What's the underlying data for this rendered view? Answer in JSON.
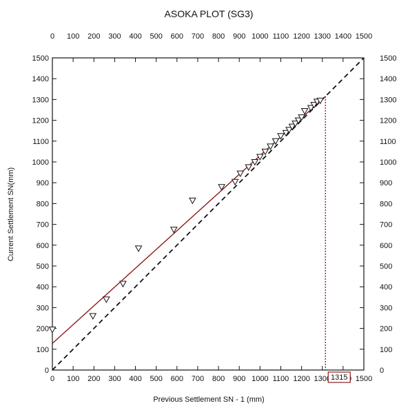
{
  "chart_data": {
    "type": "scatter",
    "title": "ASOKA PLOT (SG3)",
    "xlabel": "Previous Settlement SN - 1 (mm)",
    "ylabel": "Current Settlement SN(mm)",
    "xlim": [
      0,
      1500
    ],
    "ylim": [
      0,
      1500
    ],
    "x_ticks": [
      0,
      100,
      200,
      300,
      400,
      500,
      600,
      700,
      800,
      900,
      1000,
      1100,
      1200,
      1300,
      1400,
      1500
    ],
    "y_ticks": [
      0,
      100,
      200,
      300,
      400,
      500,
      600,
      700,
      800,
      900,
      1000,
      1100,
      1200,
      1300,
      1400,
      1500
    ],
    "grid": false,
    "points": [
      {
        "x": 0,
        "y": 195
      },
      {
        "x": 195,
        "y": 260
      },
      {
        "x": 260,
        "y": 340
      },
      {
        "x": 340,
        "y": 415
      },
      {
        "x": 415,
        "y": 585
      },
      {
        "x": 585,
        "y": 675
      },
      {
        "x": 675,
        "y": 815
      },
      {
        "x": 815,
        "y": 880
      },
      {
        "x": 880,
        "y": 905
      },
      {
        "x": 905,
        "y": 945
      },
      {
        "x": 945,
        "y": 975
      },
      {
        "x": 975,
        "y": 1000
      },
      {
        "x": 1000,
        "y": 1025
      },
      {
        "x": 1025,
        "y": 1050
      },
      {
        "x": 1050,
        "y": 1075
      },
      {
        "x": 1075,
        "y": 1100
      },
      {
        "x": 1100,
        "y": 1125
      },
      {
        "x": 1125,
        "y": 1140
      },
      {
        "x": 1140,
        "y": 1155
      },
      {
        "x": 1155,
        "y": 1170
      },
      {
        "x": 1170,
        "y": 1185
      },
      {
        "x": 1185,
        "y": 1200
      },
      {
        "x": 1200,
        "y": 1215
      },
      {
        "x": 1215,
        "y": 1245
      },
      {
        "x": 1245,
        "y": 1260
      },
      {
        "x": 1260,
        "y": 1275
      },
      {
        "x": 1275,
        "y": 1290
      },
      {
        "x": 1290,
        "y": 1295
      }
    ],
    "regression_line": {
      "x": [
        0,
        1315
      ],
      "y": [
        128,
        1315
      ],
      "color": "#8b1a1a"
    },
    "equality_line": {
      "x": [
        0,
        1500
      ],
      "y": [
        0,
        1500
      ],
      "color": "#111111"
    },
    "intersection": {
      "x": 1315,
      "y": 1315,
      "label": "1315",
      "color": "#8b1a1a"
    }
  }
}
